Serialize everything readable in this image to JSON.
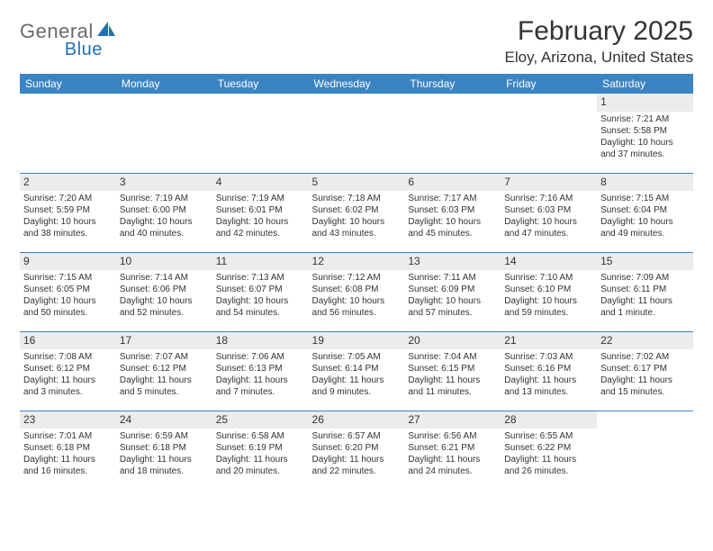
{
  "logo": {
    "text1": "General",
    "text2": "Blue"
  },
  "title": "February 2025",
  "location": "Eloy, Arizona, United States",
  "colors": {
    "header_bg": "#3b84c4",
    "header_text": "#ffffff",
    "daynum_bg": "#ececec",
    "text": "#333333",
    "logo_gray": "#6a6a6a",
    "logo_blue": "#1f70b8",
    "rule": "#3b84c4",
    "page_bg": "#ffffff"
  },
  "day_labels": [
    "Sunday",
    "Monday",
    "Tuesday",
    "Wednesday",
    "Thursday",
    "Friday",
    "Saturday"
  ],
  "labels": {
    "sunrise": "Sunrise:",
    "sunset": "Sunset:",
    "daylight": "Daylight:"
  },
  "weeks": [
    [
      null,
      null,
      null,
      null,
      null,
      null,
      {
        "n": "1",
        "sunrise": "7:21 AM",
        "sunset": "5:58 PM",
        "daylight": "10 hours and 37 minutes."
      }
    ],
    [
      {
        "n": "2",
        "sunrise": "7:20 AM",
        "sunset": "5:59 PM",
        "daylight": "10 hours and 38 minutes."
      },
      {
        "n": "3",
        "sunrise": "7:19 AM",
        "sunset": "6:00 PM",
        "daylight": "10 hours and 40 minutes."
      },
      {
        "n": "4",
        "sunrise": "7:19 AM",
        "sunset": "6:01 PM",
        "daylight": "10 hours and 42 minutes."
      },
      {
        "n": "5",
        "sunrise": "7:18 AM",
        "sunset": "6:02 PM",
        "daylight": "10 hours and 43 minutes."
      },
      {
        "n": "6",
        "sunrise": "7:17 AM",
        "sunset": "6:03 PM",
        "daylight": "10 hours and 45 minutes."
      },
      {
        "n": "7",
        "sunrise": "7:16 AM",
        "sunset": "6:03 PM",
        "daylight": "10 hours and 47 minutes."
      },
      {
        "n": "8",
        "sunrise": "7:15 AM",
        "sunset": "6:04 PM",
        "daylight": "10 hours and 49 minutes."
      }
    ],
    [
      {
        "n": "9",
        "sunrise": "7:15 AM",
        "sunset": "6:05 PM",
        "daylight": "10 hours and 50 minutes."
      },
      {
        "n": "10",
        "sunrise": "7:14 AM",
        "sunset": "6:06 PM",
        "daylight": "10 hours and 52 minutes."
      },
      {
        "n": "11",
        "sunrise": "7:13 AM",
        "sunset": "6:07 PM",
        "daylight": "10 hours and 54 minutes."
      },
      {
        "n": "12",
        "sunrise": "7:12 AM",
        "sunset": "6:08 PM",
        "daylight": "10 hours and 56 minutes."
      },
      {
        "n": "13",
        "sunrise": "7:11 AM",
        "sunset": "6:09 PM",
        "daylight": "10 hours and 57 minutes."
      },
      {
        "n": "14",
        "sunrise": "7:10 AM",
        "sunset": "6:10 PM",
        "daylight": "10 hours and 59 minutes."
      },
      {
        "n": "15",
        "sunrise": "7:09 AM",
        "sunset": "6:11 PM",
        "daylight": "11 hours and 1 minute."
      }
    ],
    [
      {
        "n": "16",
        "sunrise": "7:08 AM",
        "sunset": "6:12 PM",
        "daylight": "11 hours and 3 minutes."
      },
      {
        "n": "17",
        "sunrise": "7:07 AM",
        "sunset": "6:12 PM",
        "daylight": "11 hours and 5 minutes."
      },
      {
        "n": "18",
        "sunrise": "7:06 AM",
        "sunset": "6:13 PM",
        "daylight": "11 hours and 7 minutes."
      },
      {
        "n": "19",
        "sunrise": "7:05 AM",
        "sunset": "6:14 PM",
        "daylight": "11 hours and 9 minutes."
      },
      {
        "n": "20",
        "sunrise": "7:04 AM",
        "sunset": "6:15 PM",
        "daylight": "11 hours and 11 minutes."
      },
      {
        "n": "21",
        "sunrise": "7:03 AM",
        "sunset": "6:16 PM",
        "daylight": "11 hours and 13 minutes."
      },
      {
        "n": "22",
        "sunrise": "7:02 AM",
        "sunset": "6:17 PM",
        "daylight": "11 hours and 15 minutes."
      }
    ],
    [
      {
        "n": "23",
        "sunrise": "7:01 AM",
        "sunset": "6:18 PM",
        "daylight": "11 hours and 16 minutes."
      },
      {
        "n": "24",
        "sunrise": "6:59 AM",
        "sunset": "6:18 PM",
        "daylight": "11 hours and 18 minutes."
      },
      {
        "n": "25",
        "sunrise": "6:58 AM",
        "sunset": "6:19 PM",
        "daylight": "11 hours and 20 minutes."
      },
      {
        "n": "26",
        "sunrise": "6:57 AM",
        "sunset": "6:20 PM",
        "daylight": "11 hours and 22 minutes."
      },
      {
        "n": "27",
        "sunrise": "6:56 AM",
        "sunset": "6:21 PM",
        "daylight": "11 hours and 24 minutes."
      },
      {
        "n": "28",
        "sunrise": "6:55 AM",
        "sunset": "6:22 PM",
        "daylight": "11 hours and 26 minutes."
      },
      null
    ]
  ]
}
